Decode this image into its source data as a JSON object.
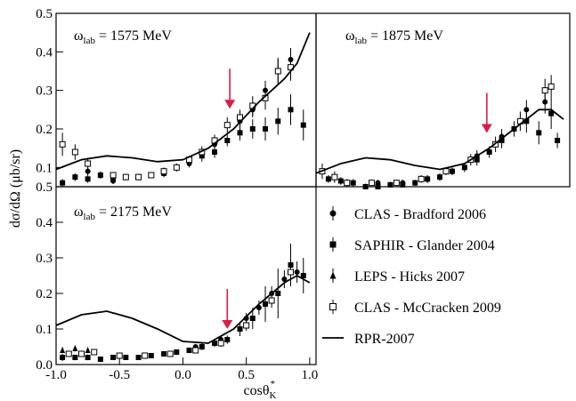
{
  "chart_data": [
    {
      "type": "scatter",
      "title": [
        "ω",
        "lab",
        " = 1575 MeV"
      ],
      "xlim": [
        -1.0,
        1.05
      ],
      "ylim": [
        0.05,
        0.5
      ],
      "yticks": [
        0.1,
        0.2,
        0.3,
        0.4,
        0.5
      ],
      "arrow_x": 0.37,
      "series": [
        {
          "marker": "circle",
          "x": [
            -0.75,
            -0.55,
            -0.35,
            -0.15,
            0.05,
            0.25,
            0.45,
            0.55,
            0.65,
            0.75,
            0.85
          ],
          "values": [
            0.09,
            0.065,
            0.075,
            0.085,
            0.11,
            0.16,
            0.22,
            0.25,
            0.3,
            0.35,
            0.38
          ],
          "errors": [
            0.01,
            0.008,
            0.008,
            0.01,
            0.01,
            0.015,
            0.02,
            0.02,
            0.025,
            0.03,
            0.03
          ]
        },
        {
          "marker": "square",
          "x": [
            -0.95,
            -0.85,
            -0.75,
            -0.65,
            -0.55,
            -0.45,
            -0.35,
            -0.25,
            -0.15,
            -0.05,
            0.05,
            0.15,
            0.25,
            0.35,
            0.45,
            0.55,
            0.65,
            0.75,
            0.85,
            0.95
          ],
          "values": [
            0.06,
            0.075,
            0.07,
            0.08,
            0.07,
            0.075,
            0.075,
            0.08,
            0.085,
            0.1,
            0.12,
            0.13,
            0.14,
            0.17,
            0.19,
            0.2,
            0.2,
            0.22,
            0.25,
            0.21
          ],
          "errors": [
            0.01,
            0.01,
            0.01,
            0.01,
            0.008,
            0.008,
            0.008,
            0.008,
            0.01,
            0.01,
            0.01,
            0.015,
            0.015,
            0.015,
            0.02,
            0.025,
            0.03,
            0.035,
            0.04,
            0.04
          ]
        },
        {
          "marker": "open-square",
          "x": [
            -0.95,
            -0.85,
            -0.75,
            -0.55,
            -0.45,
            -0.35,
            -0.25,
            -0.15,
            -0.05,
            0.05,
            0.15,
            0.25,
            0.35,
            0.45,
            0.55,
            0.65,
            0.75,
            0.85
          ],
          "values": [
            0.16,
            0.14,
            0.11,
            0.08,
            0.075,
            0.075,
            0.08,
            0.09,
            0.1,
            0.12,
            0.14,
            0.17,
            0.21,
            0.23,
            0.26,
            0.28,
            0.35,
            0.36
          ],
          "errors": [
            0.03,
            0.02,
            0.015,
            0.008,
            0.008,
            0.008,
            0.008,
            0.01,
            0.01,
            0.01,
            0.015,
            0.015,
            0.02,
            0.02,
            0.025,
            0.03,
            0.035,
            0.035
          ]
        },
        {
          "marker": "line",
          "x": [
            -1.0,
            -0.8,
            -0.6,
            -0.4,
            -0.2,
            0.0,
            0.2,
            0.4,
            0.6,
            0.8,
            0.9,
            1.0
          ],
          "values": [
            0.095,
            0.12,
            0.13,
            0.125,
            0.115,
            0.12,
            0.15,
            0.2,
            0.27,
            0.33,
            0.37,
            0.45
          ]
        }
      ]
    },
    {
      "type": "scatter",
      "title": [
        "ω",
        "lab",
        " = 1875 MeV"
      ],
      "xlim": [
        -1.0,
        1.05
      ],
      "ylim": [
        0.05,
        0.5
      ],
      "arrow_x": 0.38,
      "series": [
        {
          "marker": "circle",
          "x": [
            -0.5,
            -0.3,
            -0.1,
            0.1,
            0.3,
            0.5,
            0.7,
            0.85
          ],
          "values": [
            0.06,
            0.06,
            0.07,
            0.09,
            0.13,
            0.18,
            0.25,
            0.27
          ],
          "errors": [
            0.008,
            0.008,
            0.01,
            0.01,
            0.015,
            0.02,
            0.025,
            0.03
          ]
        },
        {
          "marker": "square",
          "x": [
            -0.9,
            -0.8,
            -0.7,
            -0.6,
            -0.5,
            -0.4,
            -0.3,
            -0.2,
            -0.1,
            0.0,
            0.1,
            0.2,
            0.3,
            0.4,
            0.5,
            0.6,
            0.7,
            0.8,
            0.9,
            0.95
          ],
          "values": [
            0.07,
            0.065,
            0.06,
            0.05,
            0.05,
            0.055,
            0.055,
            0.06,
            0.07,
            0.075,
            0.09,
            0.1,
            0.12,
            0.14,
            0.17,
            0.2,
            0.22,
            0.19,
            0.24,
            0.17
          ],
          "errors": [
            0.01,
            0.01,
            0.01,
            0.008,
            0.008,
            0.008,
            0.008,
            0.008,
            0.01,
            0.01,
            0.01,
            0.012,
            0.015,
            0.015,
            0.02,
            0.02,
            0.03,
            0.03,
            0.04,
            0.02
          ]
        },
        {
          "marker": "open-square",
          "x": [
            -0.95,
            -0.85,
            -0.75,
            -0.55,
            -0.35,
            -0.15,
            0.05,
            0.25,
            0.45,
            0.65,
            0.85,
            0.9
          ],
          "values": [
            0.09,
            0.075,
            0.06,
            0.06,
            0.06,
            0.07,
            0.09,
            0.12,
            0.16,
            0.22,
            0.3,
            0.31
          ],
          "errors": [
            0.02,
            0.015,
            0.01,
            0.008,
            0.008,
            0.01,
            0.01,
            0.015,
            0.02,
            0.025,
            0.03,
            0.03
          ]
        },
        {
          "marker": "line",
          "x": [
            -1.0,
            -0.8,
            -0.6,
            -0.4,
            -0.2,
            0.0,
            0.2,
            0.4,
            0.6,
            0.8,
            0.9,
            1.0
          ],
          "values": [
            0.085,
            0.11,
            0.125,
            0.12,
            0.105,
            0.095,
            0.11,
            0.15,
            0.2,
            0.25,
            0.25,
            0.225
          ]
        }
      ]
    },
    {
      "type": "scatter",
      "title": [
        "ω",
        "lab",
        " = 2175 MeV"
      ],
      "xlim": [
        -1.0,
        1.05
      ],
      "ylim": [
        0,
        0.5
      ],
      "xticks": [
        {
          "value": -1,
          "label": "-1.0"
        },
        -0.5,
        {
          "value": 0,
          "label": "0.0"
        },
        0.5,
        {
          "value": 1,
          "label": "1.0"
        }
      ],
      "yticks": [
        {
          "value": 0,
          "label": "0.0"
        },
        0.1,
        0.2,
        0.3,
        0.4,
        0.5
      ],
      "arrow_x": 0.35,
      "xlabel": [
        "cosθ",
        "K",
        "*"
      ],
      "ylabel": "dσ/dΩ (μb/sr)",
      "series": [
        {
          "name": "CLAS - Bradford 2006",
          "marker": "circle",
          "x": [
            0.1,
            0.3,
            0.5,
            0.6,
            0.7,
            0.8,
            0.9
          ],
          "values": [
            0.05,
            0.07,
            0.13,
            0.16,
            0.2,
            0.24,
            0.26
          ],
          "errors": [
            0.008,
            0.01,
            0.015,
            0.02,
            0.02,
            0.025,
            0.03
          ]
        },
        {
          "name": "SAPHIR - Glander 2004",
          "marker": "square",
          "x": [
            -0.95,
            -0.85,
            -0.75,
            -0.65,
            -0.55,
            -0.45,
            -0.35,
            -0.25,
            -0.15,
            -0.05,
            0.05,
            0.15,
            0.25,
            0.35,
            0.45,
            0.55,
            0.65,
            0.75,
            0.85,
            0.95
          ],
          "values": [
            0.02,
            0.02,
            0.02,
            0.015,
            0.02,
            0.02,
            0.02,
            0.025,
            0.03,
            0.035,
            0.04,
            0.05,
            0.06,
            0.07,
            0.1,
            0.13,
            0.17,
            0.2,
            0.28,
            0.25
          ],
          "errors": [
            0.01,
            0.008,
            0.008,
            0.006,
            0.006,
            0.006,
            0.006,
            0.006,
            0.008,
            0.008,
            0.008,
            0.01,
            0.01,
            0.012,
            0.02,
            0.03,
            0.05,
            0.07,
            0.06,
            0.05
          ]
        },
        {
          "name": "LEPS - Hicks 2007",
          "marker": "triangle",
          "x": [
            -0.95,
            -0.85,
            -0.75
          ],
          "values": [
            0.04,
            0.045,
            0.04
          ],
          "errors": [
            0.008,
            0.008,
            0.008
          ]
        },
        {
          "name": "CLAS - McCracken 2009",
          "marker": "open-square",
          "x": [
            -0.9,
            -0.8,
            -0.7,
            -0.5,
            -0.3,
            -0.1,
            0.1,
            0.3,
            0.5,
            0.7,
            0.85
          ],
          "values": [
            0.03,
            0.03,
            0.035,
            0.025,
            0.025,
            0.03,
            0.04,
            0.06,
            0.11,
            0.18,
            0.26
          ],
          "errors": [
            0.008,
            0.008,
            0.008,
            0.006,
            0.006,
            0.006,
            0.008,
            0.01,
            0.015,
            0.02,
            0.03
          ]
        },
        {
          "name": "RPR-2007",
          "marker": "line",
          "x": [
            -1.0,
            -0.8,
            -0.6,
            -0.4,
            -0.2,
            0.0,
            0.2,
            0.4,
            0.6,
            0.8,
            0.9,
            1.0
          ],
          "values": [
            0.11,
            0.14,
            0.15,
            0.13,
            0.1,
            0.065,
            0.06,
            0.1,
            0.17,
            0.23,
            0.25,
            0.23
          ]
        }
      ]
    }
  ]
}
